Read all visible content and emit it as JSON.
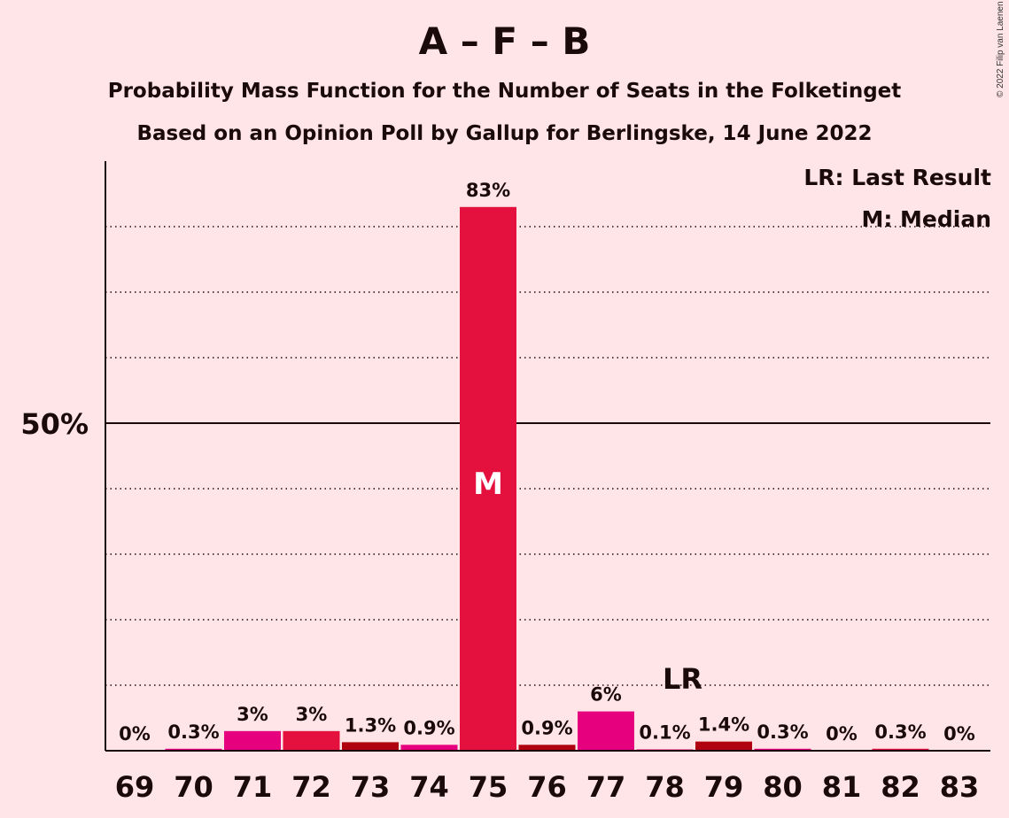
{
  "chart_data": {
    "type": "bar",
    "title": "A – F – B",
    "subtitle_1": "Probability Mass Function for the Number of Seats in the Folketinget",
    "subtitle_2": "Based on an Opinion Poll by Gallup for Berlingske, 14 June 2022",
    "copyright": "© 2022 Filip van Laenen",
    "legend": {
      "lr": "LR: Last Result",
      "m": "M: Median",
      "placement": "top-right"
    },
    "categories": [
      69,
      70,
      71,
      72,
      73,
      74,
      75,
      76,
      77,
      78,
      79,
      80,
      81,
      82,
      83
    ],
    "values": [
      0,
      0.3,
      3,
      3,
      1.3,
      0.9,
      83,
      0.9,
      6,
      0.1,
      1.4,
      0.3,
      0,
      0.3,
      0
    ],
    "value_labels": [
      "0%",
      "0.3%",
      "3%",
      "3%",
      "1.3%",
      "0.9%",
      "83%",
      "0.9%",
      "6%",
      "0.1%",
      "1.4%",
      "0.3%",
      "0%",
      "0.3%",
      "0%"
    ],
    "colors": [
      "#E6007E",
      "#E6007E",
      "#E6007E",
      "#E4103D",
      "#B00010",
      "#E6007E",
      "#E4103D",
      "#B00010",
      "#E6007E",
      "#E6007E",
      "#B00010",
      "#E6007E",
      "#E6007E",
      "#E4103D",
      "#E6007E"
    ],
    "median_seat": 75,
    "median_marker": "M",
    "last_result_seat": 78,
    "last_result_marker": "LR",
    "y_tick_label": "50%",
    "y_tick_value": 50,
    "ylim": [
      0,
      90
    ],
    "gridlines": [
      10,
      20,
      30,
      40,
      60,
      70,
      80
    ],
    "grid": "dotted"
  }
}
